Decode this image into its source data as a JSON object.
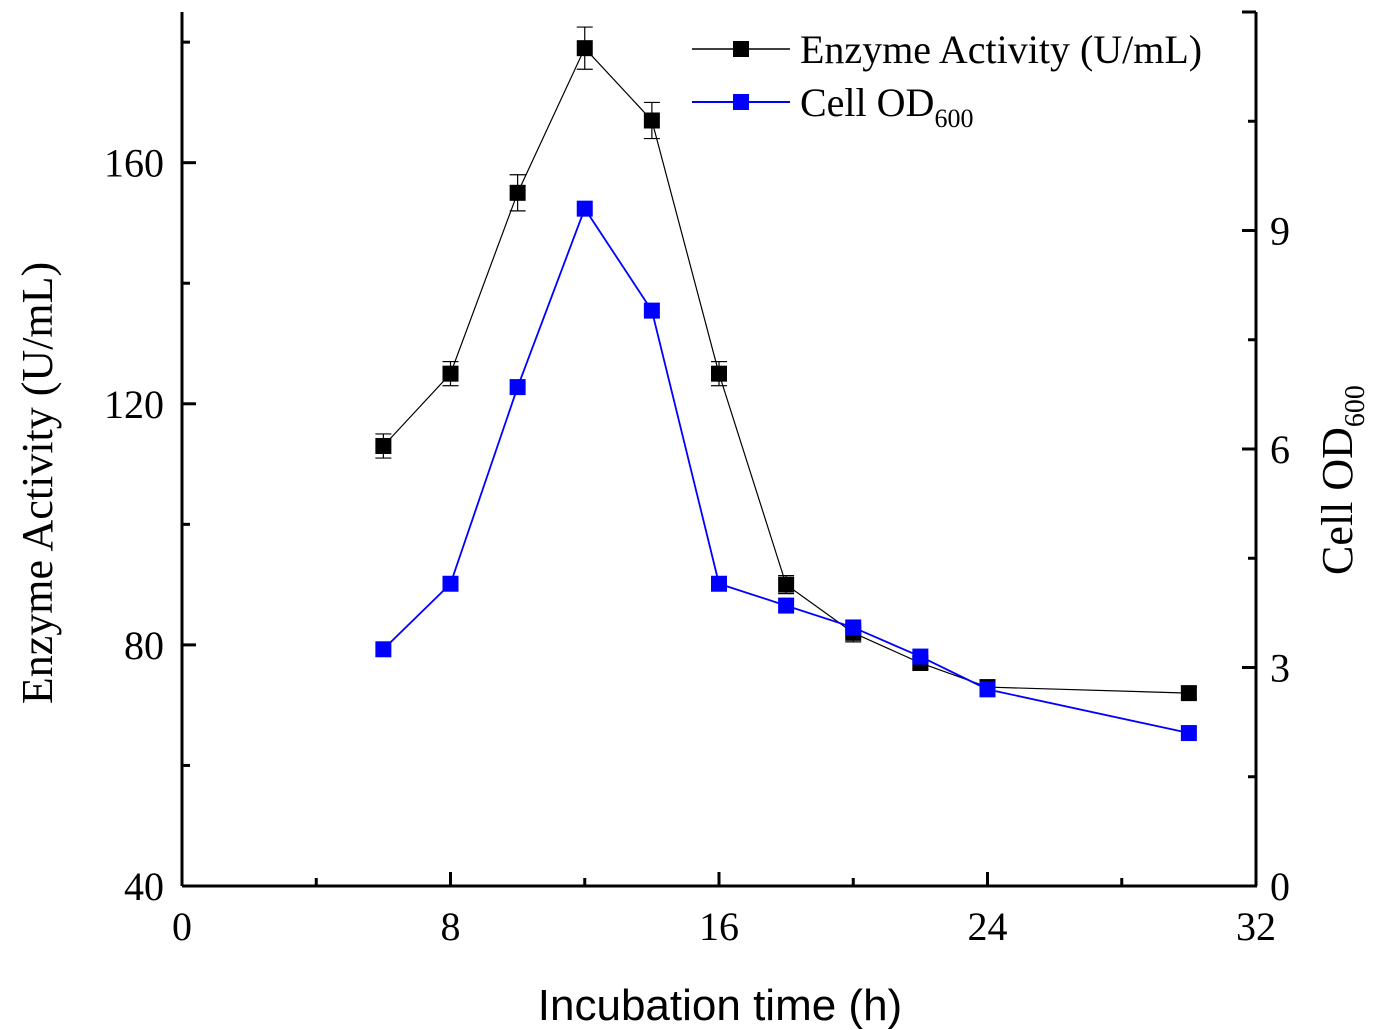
{
  "chart_data": {
    "type": "line",
    "title": "",
    "xlabel": "Incubation time (h)",
    "ylabel_left": "Enzyme Activity (U/mL)",
    "ylabel_right_main": "Cell OD",
    "ylabel_right_sub": "600",
    "xlim": [
      0,
      32
    ],
    "ylim_left": [
      40,
      185
    ],
    "ylim_right": [
      0,
      12
    ],
    "x_ticks": [
      "0",
      "8",
      "16",
      "24",
      "32"
    ],
    "y_left_ticks": [
      "40",
      "80",
      "120",
      "160"
    ],
    "y_right_ticks": [
      "0",
      "3",
      "6",
      "9"
    ],
    "grid": false,
    "legend_position": "top-right",
    "series": [
      {
        "name": "Enzyme Activity (U/mL)",
        "axis": "left",
        "color": "#000000",
        "marker": "square",
        "x": [
          6,
          8,
          10,
          12,
          14,
          16,
          18,
          20,
          22,
          24,
          30
        ],
        "y": [
          113,
          125,
          155,
          179,
          167,
          125,
          90,
          82,
          77,
          73,
          72
        ],
        "error": [
          2,
          2,
          3,
          3.5,
          3,
          2,
          1.5,
          1.5,
          1,
          1,
          1
        ]
      },
      {
        "name_main": "Cell OD",
        "name_sub": "600",
        "axis": "right",
        "color": "#0000ff",
        "marker": "square",
        "x": [
          6,
          8,
          10,
          12,
          14,
          16,
          18,
          20,
          22,
          24,
          30
        ],
        "y": [
          3.25,
          4.15,
          6.85,
          9.3,
          7.9,
          4.15,
          3.85,
          3.55,
          3.15,
          2.7,
          2.1
        ]
      }
    ]
  }
}
